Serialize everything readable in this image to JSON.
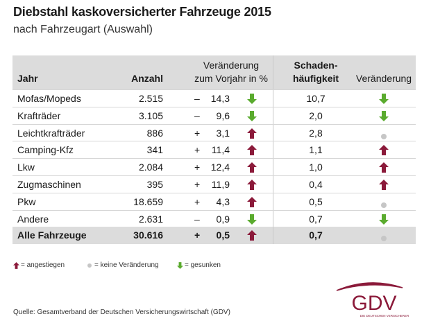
{
  "title": "Diebstahl kaskoversicherter Fahrzeuge 2015",
  "subtitle": "nach Fahrzeugart (Auswahl)",
  "colors": {
    "up": "#8b1a3a",
    "down": "#5aab2e",
    "none": "#c6c6c6",
    "header_bg": "#dcdcdc",
    "brand": "#8b1a3a"
  },
  "chart_data": {
    "type": "table",
    "columns": [
      "Jahr",
      "Anzahl",
      "Veränderung zum Vorjahr in %",
      "Schaden-häufigkeit",
      "Veränderung"
    ],
    "header": {
      "col1": "Jahr",
      "col2": "Anzahl",
      "col3_line1": "Veränderung",
      "col3_line2": "zum Vorjahr in %",
      "col4_line1": "Schaden-",
      "col4_line2": "häufigkeit",
      "col5": "Veränderung"
    },
    "rows": [
      {
        "name": "Mofas/Mopeds",
        "count": "2.515",
        "sign": "–",
        "change": "14,3",
        "trend": "down",
        "frequency": "10,7",
        "frequency_trend": "down"
      },
      {
        "name": "Krafträder",
        "count": "3.105",
        "sign": "–",
        "change": "9,6",
        "trend": "down",
        "frequency": "2,0",
        "frequency_trend": "down"
      },
      {
        "name": "Leichtkrafträder",
        "count": "886",
        "sign": "+",
        "change": "3,1",
        "trend": "up",
        "frequency": "2,8",
        "frequency_trend": "none"
      },
      {
        "name": "Camping-Kfz",
        "count": "341",
        "sign": "+",
        "change": "11,4",
        "trend": "up",
        "frequency": "1,1",
        "frequency_trend": "up"
      },
      {
        "name": "Lkw",
        "count": "2.084",
        "sign": "+",
        "change": "12,4",
        "trend": "up",
        "frequency": "1,0",
        "frequency_trend": "up"
      },
      {
        "name": "Zugmaschinen",
        "count": "395",
        "sign": "+",
        "change": "11,9",
        "trend": "up",
        "frequency": "0,4",
        "frequency_trend": "up"
      },
      {
        "name": "Pkw",
        "count": "18.659",
        "sign": "+",
        "change": "4,3",
        "trend": "up",
        "frequency": "0,5",
        "frequency_trend": "none"
      },
      {
        "name": "Andere",
        "count": "2.631",
        "sign": "–",
        "change": "0,9",
        "trend": "down",
        "frequency": "0,7",
        "frequency_trend": "down"
      },
      {
        "name": "Alle Fahrzeuge",
        "count": "30.616",
        "sign": "+",
        "change": "0,5",
        "trend": "up",
        "frequency": "0,7",
        "frequency_trend": "none",
        "total": true
      }
    ]
  },
  "legend": {
    "up": "= angestiegen",
    "none": "= keine Veränderung",
    "down": "= gesunken"
  },
  "source": "Quelle: Gesamtverband der Deutschen Versicherungswirtschaft (GDV)",
  "logo": {
    "text": "GDV",
    "tagline": "DIE DEUTSCHEN VERSICHERER"
  }
}
